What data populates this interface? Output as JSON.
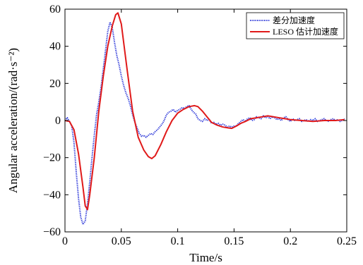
{
  "chart_data": {
    "type": "line",
    "title": "",
    "xlabel": "Time/s",
    "ylabel": "Angular acceleration/(rad·s⁻²)",
    "xlim": [
      0,
      0.25
    ],
    "ylim": [
      -60,
      60
    ],
    "xticks": [
      0,
      0.05,
      0.1,
      0.15,
      0.2,
      0.25
    ],
    "xtick_labels": [
      "0",
      "0.05",
      "0.1",
      "0.15",
      "0.2",
      "0.25"
    ],
    "yticks": [
      -60,
      -40,
      -20,
      0,
      20,
      40,
      60
    ],
    "ytick_labels": [
      "−60",
      "−40",
      "−20",
      "0",
      "20",
      "40",
      "60"
    ],
    "grid": false,
    "legend_position": "top-right",
    "series": [
      {
        "name": "差分加速度",
        "color": "#1f2bd6",
        "style": "dotted",
        "x": [
          0,
          0.002,
          0.004,
          0.006,
          0.008,
          0.01,
          0.012,
          0.014,
          0.016,
          0.018,
          0.02,
          0.022,
          0.024,
          0.026,
          0.028,
          0.03,
          0.032,
          0.034,
          0.036,
          0.038,
          0.04,
          0.042,
          0.044,
          0.046,
          0.048,
          0.05,
          0.052,
          0.054,
          0.056,
          0.058,
          0.06,
          0.062,
          0.064,
          0.066,
          0.068,
          0.07,
          0.072,
          0.074,
          0.076,
          0.078,
          0.08,
          0.082,
          0.084,
          0.086,
          0.088,
          0.09,
          0.092,
          0.094,
          0.096,
          0.098,
          0.1,
          0.102,
          0.104,
          0.106,
          0.108,
          0.11,
          0.112,
          0.114,
          0.116,
          0.118,
          0.12,
          0.122,
          0.124,
          0.126,
          0.128,
          0.13,
          0.132,
          0.134,
          0.136,
          0.138,
          0.14,
          0.142,
          0.144,
          0.146,
          0.148,
          0.15,
          0.152,
          0.154,
          0.156,
          0.158,
          0.16,
          0.162,
          0.164,
          0.166,
          0.168,
          0.17,
          0.172,
          0.174,
          0.176,
          0.178,
          0.18,
          0.182,
          0.184,
          0.186,
          0.188,
          0.19,
          0.192,
          0.194,
          0.196,
          0.198,
          0.2,
          0.202,
          0.204,
          0.206,
          0.208,
          0.21,
          0.212,
          0.214,
          0.216,
          0.218,
          0.22,
          0.222,
          0.224,
          0.226,
          0.228,
          0.23,
          0.232,
          0.234,
          0.236,
          0.238,
          0.24,
          0.242,
          0.244,
          0.246,
          0.248
        ],
        "values": [
          0,
          1.5,
          -0.5,
          -3,
          -12,
          -28,
          -42,
          -52,
          -56,
          -54,
          -45,
          -33,
          -20,
          -8,
          3,
          10,
          18,
          28,
          38,
          48,
          53,
          50,
          42,
          35,
          30,
          24,
          19,
          15,
          12,
          8,
          3,
          -1,
          -4,
          -7,
          -8.5,
          -8,
          -9,
          -8,
          -7,
          -7.5,
          -6,
          -5,
          -3.5,
          -2,
          0,
          3,
          4.5,
          5,
          6,
          4.5,
          5.5,
          6,
          7,
          6.5,
          7.5,
          8,
          6,
          4.5,
          3.5,
          1,
          0,
          -0.5,
          1,
          0,
          0.5,
          -1.5,
          -1,
          -2,
          -1.5,
          -2.5,
          -2,
          -2.5,
          -3.5,
          -3,
          -3.5,
          -3,
          -3,
          -1.5,
          -0.5,
          0.5,
          -0.5,
          1,
          1.5,
          0,
          0.5,
          2,
          1.5,
          1,
          2.5,
          1.5,
          2,
          1,
          2,
          1.5,
          0.5,
          1,
          0,
          1.5,
          2,
          0.5,
          -0.5,
          1,
          0,
          0.5,
          1,
          -0.5,
          0,
          0.5,
          -0.5,
          0.5,
          0,
          1,
          -0.5,
          0,
          0.5,
          1,
          0,
          -0.5,
          0.5,
          1,
          0,
          0.5,
          -0.5,
          0,
          1
        ]
      },
      {
        "name": "LESO 估计加速度",
        "color": "#e01a1a",
        "style": "solid",
        "x": [
          0,
          0.004,
          0.008,
          0.012,
          0.016,
          0.018,
          0.02,
          0.022,
          0.026,
          0.03,
          0.034,
          0.038,
          0.042,
          0.045,
          0.047,
          0.05,
          0.055,
          0.06,
          0.065,
          0.07,
          0.074,
          0.077,
          0.08,
          0.085,
          0.09,
          0.095,
          0.1,
          0.105,
          0.11,
          0.115,
          0.118,
          0.122,
          0.126,
          0.13,
          0.135,
          0.14,
          0.145,
          0.148,
          0.152,
          0.156,
          0.16,
          0.165,
          0.17,
          0.175,
          0.18,
          0.185,
          0.19,
          0.195,
          0.2,
          0.21,
          0.22,
          0.23,
          0.24,
          0.248
        ],
        "values": [
          0,
          -0.5,
          -5,
          -18,
          -36,
          -46,
          -48,
          -40,
          -20,
          5,
          24,
          40,
          51,
          57,
          58,
          52,
          28,
          5,
          -9,
          -16,
          -19.5,
          -20.5,
          -19,
          -13,
          -6,
          0,
          4,
          6,
          7.5,
          8,
          7.5,
          5,
          2,
          -1,
          -2.5,
          -3.5,
          -4,
          -4.2,
          -3,
          -1.5,
          -0.5,
          1,
          1.5,
          2,
          2.5,
          2,
          1.5,
          1,
          0.5,
          0,
          -0.5,
          0,
          0,
          0.5
        ]
      }
    ]
  }
}
